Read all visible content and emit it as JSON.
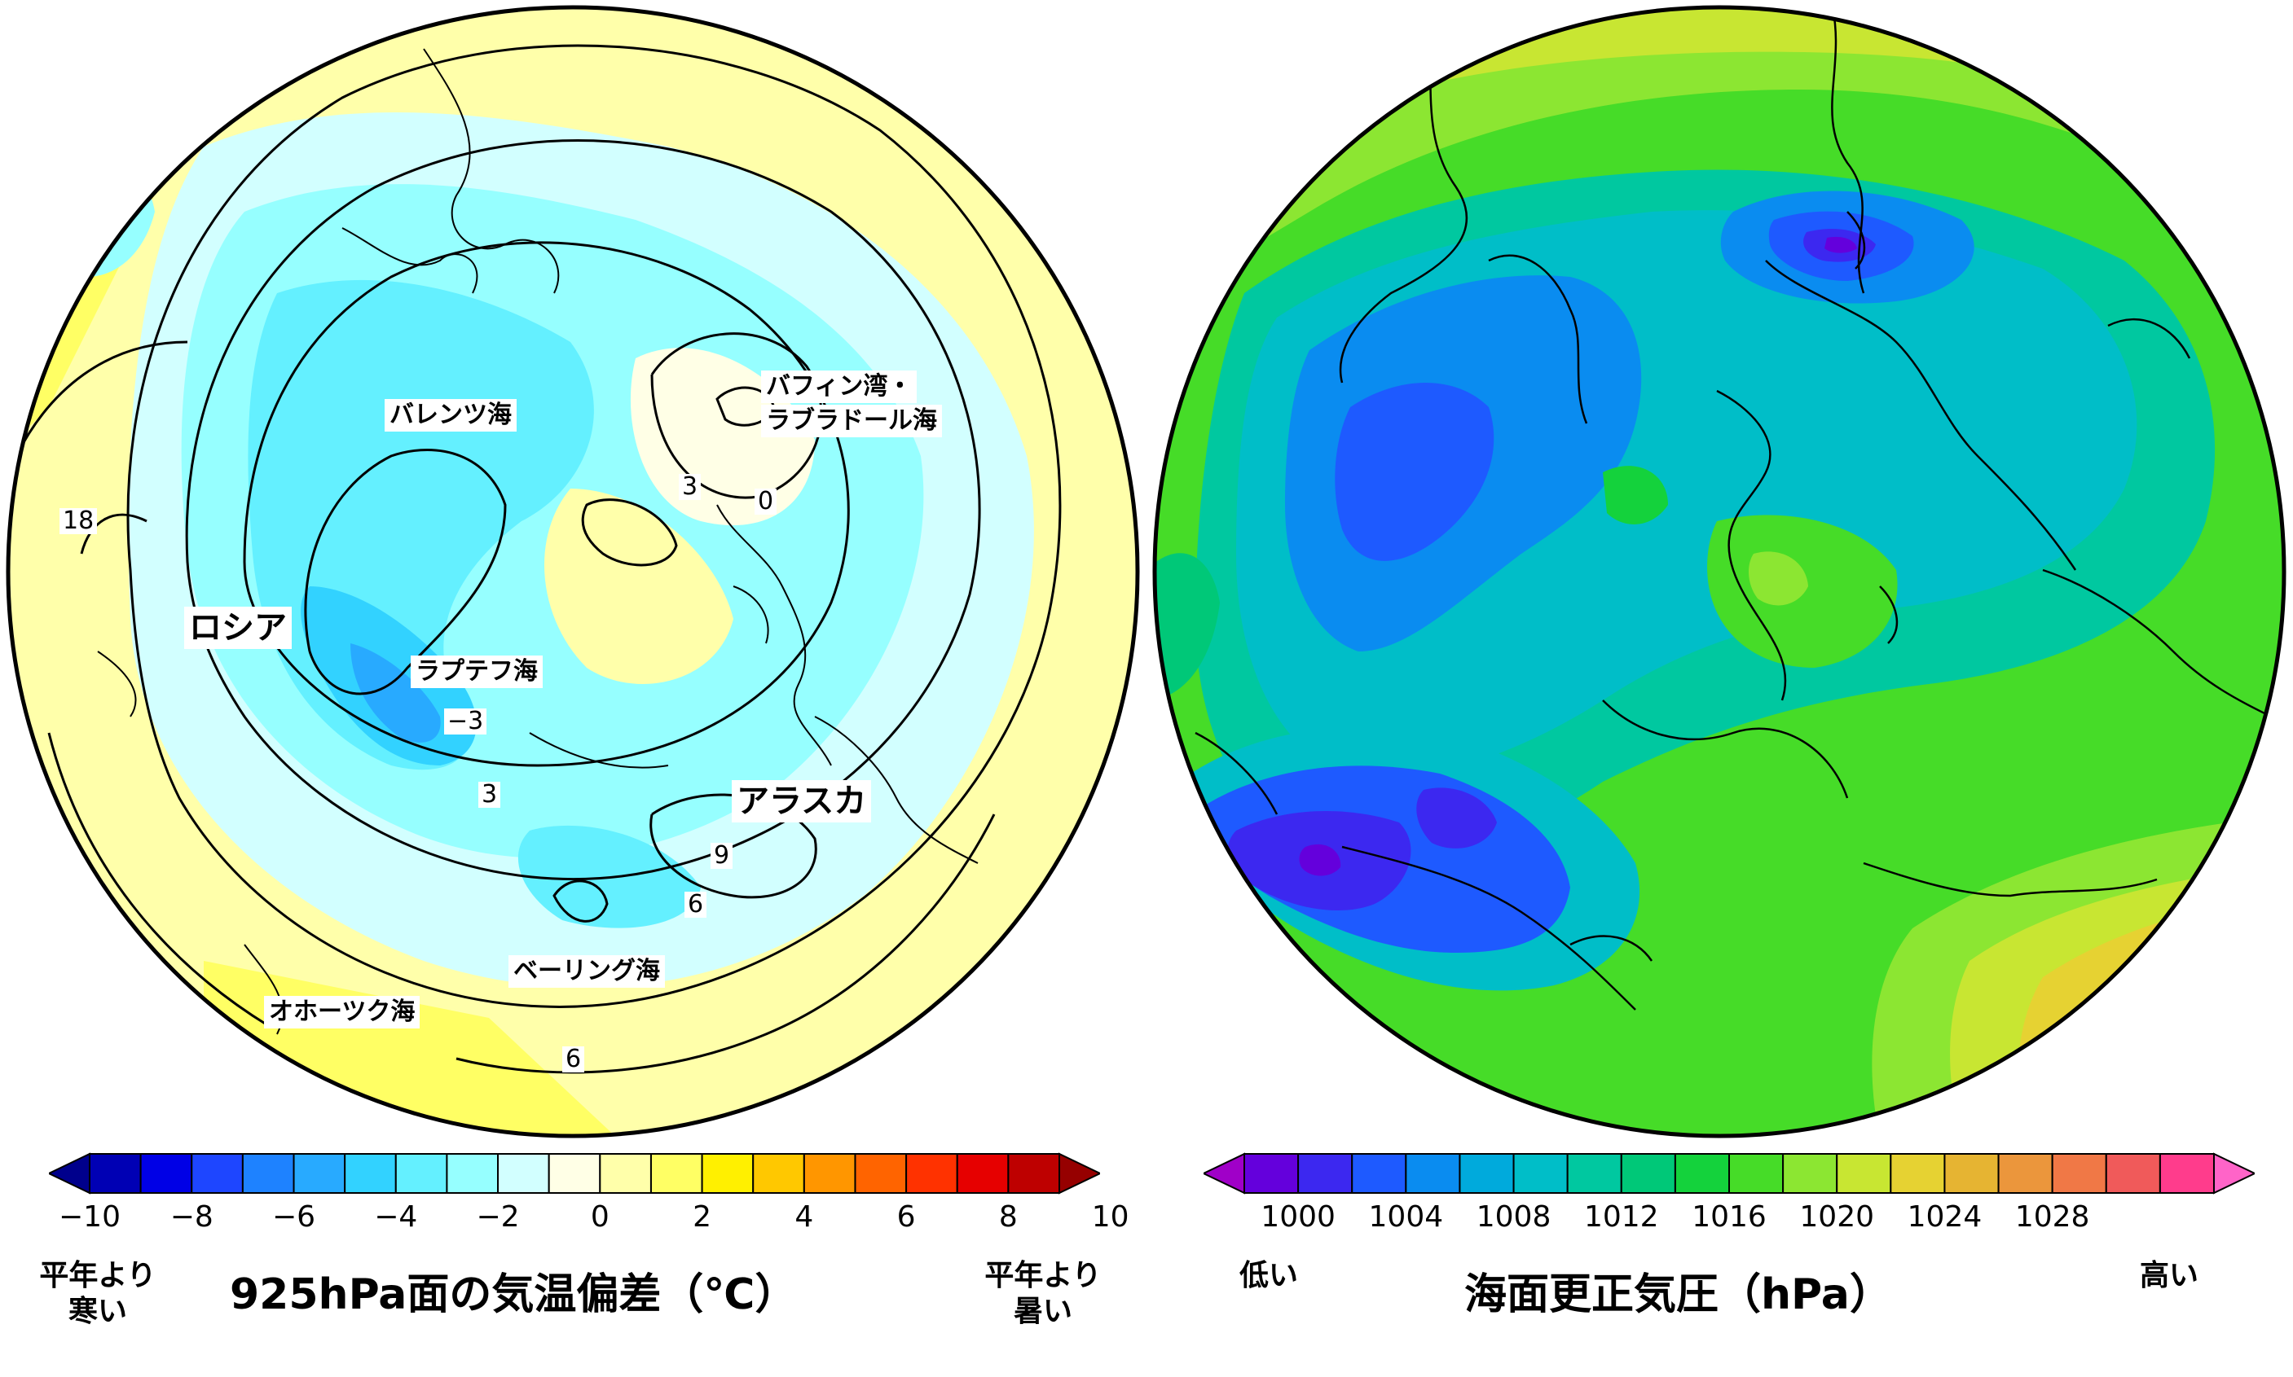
{
  "left_map": {
    "regions": {
      "russia": "ロシア",
      "barents": "バレンツ海",
      "laptev": "ラプテフ海",
      "baffin_1": "バフィン湾・",
      "baffin_2": "ラブラドール海",
      "alaska": "アラスカ",
      "bering": "ベーリング海",
      "okhotsk": "オホーツク海"
    },
    "contour_labels": {
      "c18": "18",
      "c3a": "3",
      "c0": "0",
      "cm3": "−3",
      "c3b": "3",
      "c9": "9",
      "c6a": "6",
      "c6b": "6"
    }
  },
  "left_legend": {
    "title": "925hPa面の気温偏差（℃）",
    "cold_label": [
      "平年より",
      "寒い"
    ],
    "warm_label": [
      "平年より",
      "暑い"
    ],
    "ticks": [
      "−10",
      "−8",
      "−6",
      "−4",
      "−2",
      "0",
      "2",
      "4",
      "6",
      "8",
      "10"
    ],
    "colors": [
      "#00008c",
      "#0000b4",
      "#0000e6",
      "#1e46ff",
      "#1e82ff",
      "#28aaff",
      "#32d2ff",
      "#64f0ff",
      "#96ffff",
      "#d2ffff",
      "#ffffe6",
      "#ffffaa",
      "#ffff64",
      "#fff000",
      "#ffc800",
      "#ff9600",
      "#ff6400",
      "#ff3200",
      "#e60000",
      "#be0000",
      "#960000"
    ]
  },
  "right_legend": {
    "title": "海面更正気圧（hPa）",
    "low_label": "低い",
    "high_label": "高い",
    "ticks": [
      "1000",
      "1004",
      "1008",
      "1012",
      "1016",
      "1020",
      "1024",
      "1028"
    ],
    "colors": [
      "#a000c8",
      "#6400dc",
      "#3c28f0",
      "#1e5aff",
      "#0a8cf0",
      "#00aadc",
      "#00bec8",
      "#00c8a0",
      "#00c878",
      "#14d23c",
      "#46dc28",
      "#8ce632",
      "#c8e632",
      "#e6d232",
      "#e6b432",
      "#eb963c",
      "#f07846",
      "#f05a5a",
      "#ff3c8c",
      "#ff64c8"
    ]
  }
}
